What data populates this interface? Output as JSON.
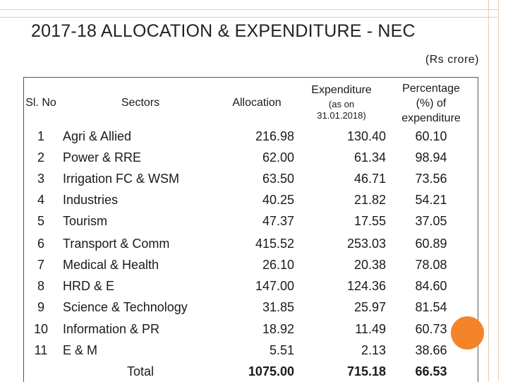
{
  "title": "2017-18 ALLOCATION & EXPENDITURE - NEC",
  "unit": "(Rs crore)",
  "headers": {
    "sl": "Sl. No",
    "sectors": "Sectors",
    "allocation": "Allocation",
    "expenditure": "Expenditure",
    "expenditure_note1": "(as on",
    "expenditure_note2": "31.01.2018)",
    "pct1": "Percentage",
    "pct2": "(%) of",
    "pct3": "expenditure"
  },
  "rows": [
    {
      "sl": "1",
      "sector": "Agri & Allied",
      "alloc": "216.98",
      "exp": "130.40",
      "pct": "60.10"
    },
    {
      "sl": "2",
      "sector": "Power & RRE",
      "alloc": "62.00",
      "exp": "61.34",
      "pct": "98.94"
    },
    {
      "sl": "3",
      "sector": "Irrigation FC & WSM",
      "alloc": "63.50",
      "exp": "46.71",
      "pct": "73.56"
    },
    {
      "sl": "4",
      "sector": "Industries",
      "alloc": "40.25",
      "exp": "21.82",
      "pct": "54.21"
    },
    {
      "sl": "5",
      "sector": "Tourism",
      "alloc": "47.37",
      "exp": "17.55",
      "pct": "37.05"
    },
    {
      "sl": "6",
      "sector": "Transport & Comm",
      "alloc": "415.52",
      "exp": "253.03",
      "pct": "60.89"
    },
    {
      "sl": "7",
      "sector": "Medical & Health",
      "alloc": "26.10",
      "exp": "20.38",
      "pct": "78.08"
    },
    {
      "sl": "8",
      "sector": "HRD & E",
      "alloc": "147.00",
      "exp": "124.36",
      "pct": "84.60"
    },
    {
      "sl": "9",
      "sector": "Science & Technology",
      "alloc": "31.85",
      "exp": "25.97",
      "pct": "81.54"
    },
    {
      "sl": "10",
      "sector": "Information & PR",
      "alloc": "18.92",
      "exp": "11.49",
      "pct": "60.73"
    },
    {
      "sl": "11",
      "sector": "E & M",
      "alloc": "5.51",
      "exp": "2.13",
      "pct": "38.66"
    }
  ],
  "total": {
    "label": "Total",
    "alloc": "1075.00",
    "exp": "715.18",
    "pct": "66.53"
  },
  "colors": {
    "frame": "#e6cfae",
    "accent_circle": "#f58327"
  }
}
